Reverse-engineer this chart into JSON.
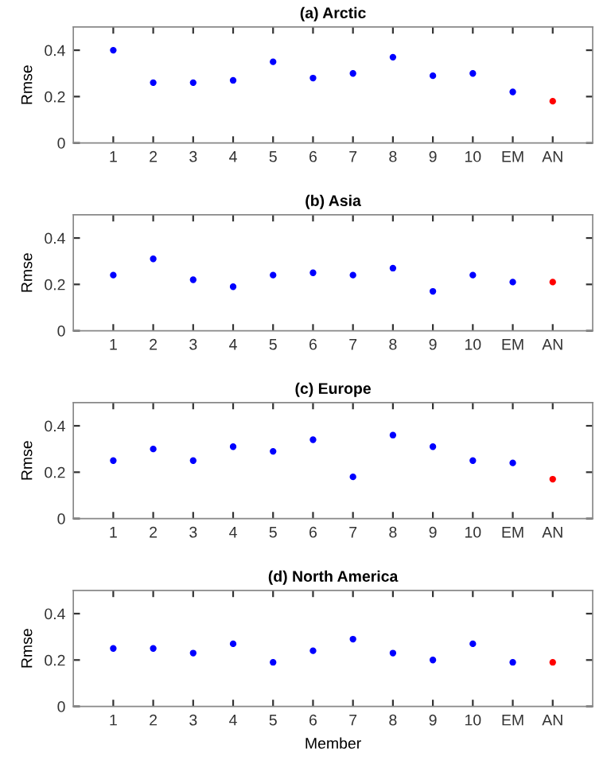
{
  "chart_data": [
    {
      "type": "scatter",
      "title": "(a) Arctic",
      "ylabel": "Rmse",
      "categories": [
        "1",
        "2",
        "3",
        "4",
        "5",
        "6",
        "7",
        "8",
        "9",
        "10",
        "EM",
        "AN"
      ],
      "values": [
        0.4,
        0.26,
        0.26,
        0.27,
        0.35,
        0.28,
        0.3,
        0.37,
        0.29,
        0.3,
        0.22,
        0.18
      ],
      "colors": [
        "#0000ff",
        "#0000ff",
        "#0000ff",
        "#0000ff",
        "#0000ff",
        "#0000ff",
        "#0000ff",
        "#0000ff",
        "#0000ff",
        "#0000ff",
        "#0000ff",
        "#ff0000"
      ],
      "ylim": [
        0,
        0.5
      ],
      "yticks": [
        0,
        0.2,
        0.4
      ],
      "marker": "circle",
      "grid": false
    },
    {
      "type": "scatter",
      "title": "(b) Asia",
      "ylabel": "Rmse",
      "categories": [
        "1",
        "2",
        "3",
        "4",
        "5",
        "6",
        "7",
        "8",
        "9",
        "10",
        "EM",
        "AN"
      ],
      "values": [
        0.24,
        0.31,
        0.22,
        0.19,
        0.24,
        0.25,
        0.24,
        0.27,
        0.17,
        0.24,
        0.21,
        0.21
      ],
      "colors": [
        "#0000ff",
        "#0000ff",
        "#0000ff",
        "#0000ff",
        "#0000ff",
        "#0000ff",
        "#0000ff",
        "#0000ff",
        "#0000ff",
        "#0000ff",
        "#0000ff",
        "#ff0000"
      ],
      "ylim": [
        0,
        0.5
      ],
      "yticks": [
        0,
        0.2,
        0.4
      ],
      "marker": "circle",
      "grid": false
    },
    {
      "type": "scatter",
      "title": "(c) Europe",
      "ylabel": "Rmse",
      "categories": [
        "1",
        "2",
        "3",
        "4",
        "5",
        "6",
        "7",
        "8",
        "9",
        "10",
        "EM",
        "AN"
      ],
      "values": [
        0.25,
        0.3,
        0.25,
        0.31,
        0.29,
        0.34,
        0.18,
        0.36,
        0.31,
        0.25,
        0.24,
        0.17
      ],
      "colors": [
        "#0000ff",
        "#0000ff",
        "#0000ff",
        "#0000ff",
        "#0000ff",
        "#0000ff",
        "#0000ff",
        "#0000ff",
        "#0000ff",
        "#0000ff",
        "#0000ff",
        "#ff0000"
      ],
      "ylim": [
        0,
        0.5
      ],
      "yticks": [
        0,
        0.2,
        0.4
      ],
      "marker": "circle",
      "grid": false
    },
    {
      "type": "scatter",
      "title": "(d) North America",
      "xlabel": "Member",
      "ylabel": "Rmse",
      "categories": [
        "1",
        "2",
        "3",
        "4",
        "5",
        "6",
        "7",
        "8",
        "9",
        "10",
        "EM",
        "AN"
      ],
      "values": [
        0.25,
        0.25,
        0.23,
        0.27,
        0.19,
        0.24,
        0.29,
        0.23,
        0.2,
        0.27,
        0.19,
        0.19
      ],
      "colors": [
        "#0000ff",
        "#0000ff",
        "#0000ff",
        "#0000ff",
        "#0000ff",
        "#0000ff",
        "#0000ff",
        "#0000ff",
        "#0000ff",
        "#0000ff",
        "#0000ff",
        "#ff0000"
      ],
      "ylim": [
        0,
        0.5
      ],
      "yticks": [
        0,
        0.2,
        0.4
      ],
      "marker": "circle",
      "grid": false
    }
  ]
}
